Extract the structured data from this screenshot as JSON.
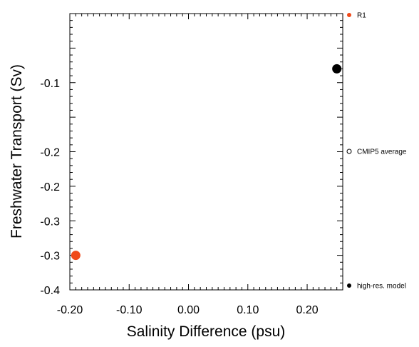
{
  "chart_data": {
    "type": "scatter",
    "xlabel": "Salinity Difference (psu)",
    "ylabel": "Freshwater Transport (Sv)",
    "xlim": [
      -0.2,
      0.26
    ],
    "ylim": [
      -0.4,
      0.0
    ],
    "x_ticks": [
      -0.2,
      -0.1,
      0.0,
      0.1,
      0.2
    ],
    "x_tick_labels": [
      "-0.20",
      "-0.10",
      "0.00",
      "0.10",
      "0.20"
    ],
    "y_ticks": [
      -0.4,
      -0.3,
      -0.2,
      -0.1
    ],
    "y_tick_labels": [
      "-0.4",
      "-0.3",
      "-0.2",
      "-0.1"
    ],
    "y_tick_labels_shown": [
      {
        "value": -0.4,
        "label": "-0.4"
      },
      {
        "value": -0.35,
        "label": "-0.3"
      },
      {
        "value": -0.3,
        "label": "-0.3"
      },
      {
        "value": -0.25,
        "label": "-0.2"
      },
      {
        "value": -0.2,
        "label": "-0.2"
      },
      {
        "value": -0.1,
        "label": "-0.1"
      }
    ],
    "grid": false,
    "legend_position": "right",
    "series": [
      {
        "name": "R1",
        "color": "#f04a1a",
        "marker": "filled-circle",
        "points": [
          {
            "x": -0.19,
            "y": -0.35
          }
        ]
      },
      {
        "name": "CMIP5 average",
        "color": "#000000",
        "marker": "open-circle",
        "points": []
      },
      {
        "name": "high-res. model",
        "color": "#000000",
        "marker": "filled-circle",
        "points": [
          {
            "x": 0.25,
            "y": -0.08
          }
        ]
      }
    ]
  }
}
